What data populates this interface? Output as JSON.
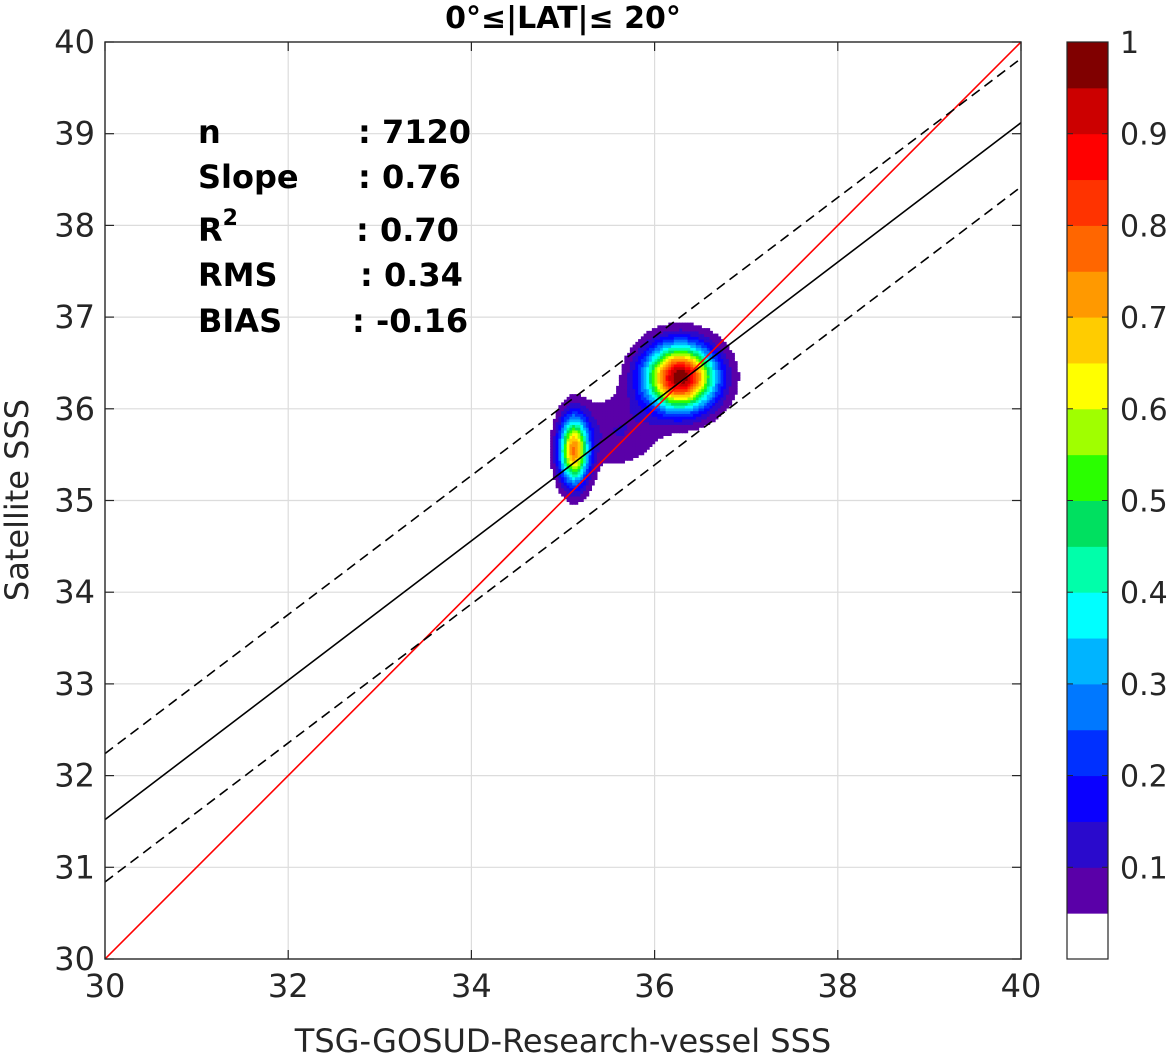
{
  "chart_data": {
    "type": "contour",
    "title": "0°≤|LAT|≤ 20°",
    "xlabel": "TSG-GOSUD-Research-vessel SSS",
    "ylabel": "Satellite SSS",
    "xlim": [
      30,
      40
    ],
    "ylim": [
      30,
      40
    ],
    "xticks": [
      "30",
      "32",
      "34",
      "36",
      "38",
      "40"
    ],
    "yticks": [
      "30",
      "31",
      "32",
      "33",
      "34",
      "35",
      "36",
      "37",
      "38",
      "39",
      "40"
    ],
    "grid": true,
    "stats": [
      {
        "label": "n",
        "value": ": 7120"
      },
      {
        "label": "Slope",
        "value": ": 0.76"
      },
      {
        "label": "R",
        "sup": "2",
        "value": ": 0.70"
      },
      {
        "label": "RMS",
        "value": ": 0.34"
      },
      {
        "label": "BIAS",
        "value": ": -0.16"
      }
    ],
    "lines": [
      {
        "kind": "one-to-one",
        "color": "#ff0000",
        "dash": "solid",
        "points": [
          [
            30,
            30
          ],
          [
            40,
            40
          ]
        ]
      },
      {
        "kind": "regression",
        "color": "#000000",
        "dash": "solid",
        "points": [
          [
            30,
            31.52
          ],
          [
            40,
            39.12
          ]
        ]
      },
      {
        "kind": "regression-upper",
        "color": "#000000",
        "dash": "dashed",
        "points": [
          [
            30,
            32.24
          ],
          [
            40,
            39.82
          ]
        ]
      },
      {
        "kind": "regression-lower",
        "color": "#000000",
        "dash": "dashed",
        "points": [
          [
            30,
            30.84
          ],
          [
            40,
            38.42
          ]
        ]
      }
    ],
    "density_peaks": [
      {
        "x": 36.28,
        "y": 36.35,
        "peak": 1.0,
        "sx": 0.26,
        "sy": 0.24
      },
      {
        "x": 35.12,
        "y": 35.55,
        "peak": 0.74,
        "sx": 0.11,
        "sy": 0.25
      },
      {
        "x": 35.6,
        "y": 35.75,
        "peak": 0.1,
        "sx": 0.32,
        "sy": 0.28
      }
    ],
    "colorbar": {
      "ticks": [
        "0.1",
        "0.2",
        "0.3",
        "0.4",
        "0.5",
        "0.6",
        "0.7",
        "0.8",
        "0.9",
        "1"
      ],
      "range": [
        0,
        1
      ],
      "colors": [
        "#ffffff",
        "#5a00a8",
        "#2a0acc",
        "#0a00ff",
        "#0030ff",
        "#0078ff",
        "#00b4ff",
        "#00ffff",
        "#00ffaa",
        "#00e060",
        "#2aff00",
        "#a0ff00",
        "#ffff00",
        "#ffcc00",
        "#ff9900",
        "#ff6600",
        "#ff3300",
        "#ff0000",
        "#cc0000",
        "#800000"
      ]
    }
  }
}
